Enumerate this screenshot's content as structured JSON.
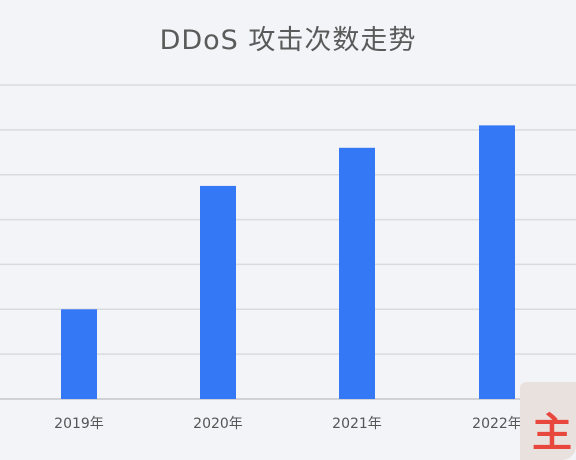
{
  "chart_data": {
    "type": "bar",
    "title": "DDoS 攻击次数走势",
    "categories": [
      "2019年",
      "2020年",
      "2021年",
      "2022年"
    ],
    "values": [
      2.0,
      4.75,
      5.6,
      6.1
    ],
    "ylim": [
      0,
      7
    ],
    "grid": true,
    "legend": "none",
    "bar_color": "#3478f6",
    "grid_color": "#d9dbe0",
    "axis_color": "#c4c7cd"
  },
  "watermark_text": "主"
}
